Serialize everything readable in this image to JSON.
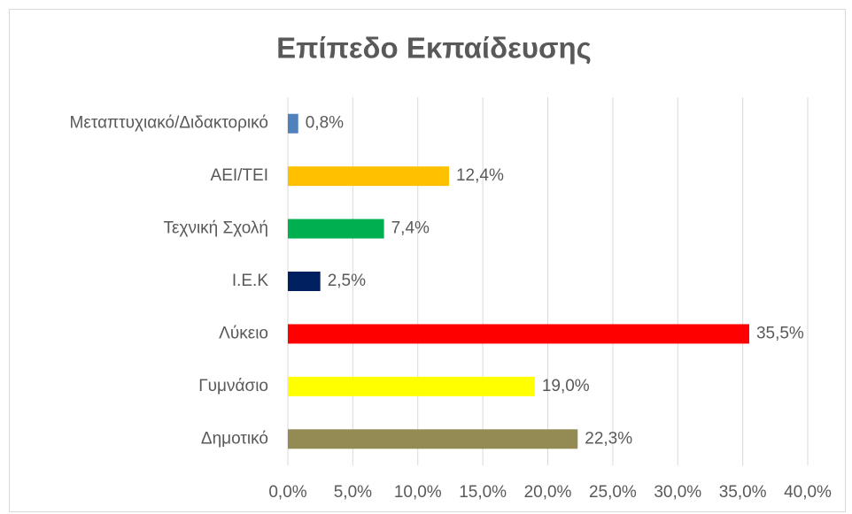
{
  "chart_data": {
    "type": "barh",
    "title": "Επίπεδο Εκπαίδευσης",
    "categories": [
      "Μεταπτυχιακό/Διδακτορικό",
      "ΑΕΙ/ΤΕΙ",
      "Τεχνική Σχολή",
      "Ι.Ε.Κ",
      "Λύκειο",
      "Γυμνάσιο",
      "Δημοτικό"
    ],
    "values": [
      0.8,
      12.4,
      7.4,
      2.5,
      35.5,
      19.0,
      22.3
    ],
    "value_labels": [
      "0,8%",
      "12,4%",
      "7,4%",
      "2,5%",
      "35,5%",
      "19,0%",
      "22,3%"
    ],
    "colors": [
      "#4f81bd",
      "#ffc000",
      "#00b050",
      "#002060",
      "#ff0000",
      "#ffff00",
      "#948a54"
    ],
    "xlim": [
      0,
      40
    ],
    "xticks": [
      {
        "value": 0,
        "label": "0,0%"
      },
      {
        "value": 5,
        "label": "5,0%"
      },
      {
        "value": 10,
        "label": "10,0%"
      },
      {
        "value": 15,
        "label": "15,0%"
      },
      {
        "value": 20,
        "label": "20,0%"
      },
      {
        "value": 25,
        "label": "25,0%"
      },
      {
        "value": 30,
        "label": "30,0%"
      },
      {
        "value": 35,
        "label": "35,0%"
      },
      {
        "value": 40,
        "label": "40,0%"
      }
    ],
    "grid": true
  }
}
